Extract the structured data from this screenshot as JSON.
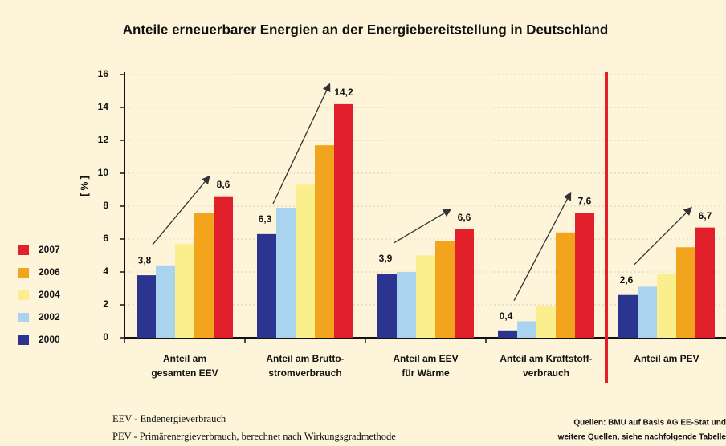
{
  "chart_data": {
    "type": "bar",
    "title": "Anteile erneuerbarer Energien an der Energiebereitstellung in Deutschland",
    "y_label": "[ % ]",
    "categories": [
      [
        "Anteil am",
        "gesamten EEV"
      ],
      [
        "Anteil am Brutto-",
        "stromverbrauch"
      ],
      [
        "Anteil am EEV",
        "für Wärme"
      ],
      [
        "Anteil am Kraftstoff-",
        "verbrauch"
      ],
      [
        "Anteil am PEV"
      ]
    ],
    "series": [
      {
        "name": "2000",
        "color": "#2b358f",
        "values": [
          3.8,
          6.3,
          3.9,
          0.4,
          2.6
        ],
        "value_labels": [
          "3,8",
          "6,3",
          "3,9",
          "0,4",
          "2,6"
        ]
      },
      {
        "name": "2002",
        "color": "#a9d3ef",
        "values": [
          4.4,
          7.9,
          4.0,
          1.0,
          3.1
        ]
      },
      {
        "name": "2004",
        "color": "#fbee8c",
        "values": [
          5.7,
          9.3,
          5.0,
          1.9,
          3.9
        ]
      },
      {
        "name": "2006",
        "color": "#f2a41d",
        "values": [
          7.6,
          11.7,
          5.9,
          6.4,
          5.5
        ]
      },
      {
        "name": "2007",
        "color": "#e2202b",
        "values": [
          8.6,
          14.2,
          6.6,
          7.6,
          6.7
        ],
        "value_labels": [
          "8,6",
          "14,2",
          "6,6",
          "7,6",
          "6,7"
        ]
      }
    ],
    "ylim": [
      0,
      16
    ],
    "yticks": [
      0,
      2,
      4,
      6,
      8,
      10,
      12,
      14,
      16
    ],
    "grid": true,
    "legend": "left",
    "footnotes": [
      "EEV - Endenergieverbrauch",
      "PEV - Primärenergieverbrauch, berechnet nach Wirkungsgradmethode"
    ],
    "sources": [
      "Quellen: BMU auf Basis AG EE-Stat und",
      "weitere Quellen, siehe nachfolgende Tabelle"
    ]
  }
}
